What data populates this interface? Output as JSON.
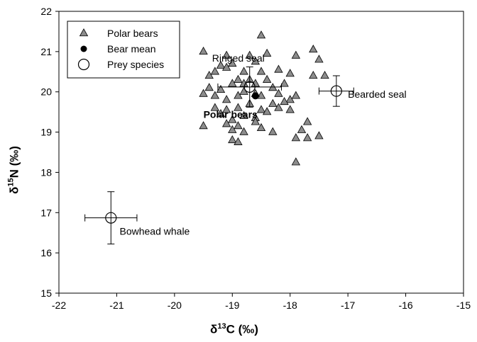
{
  "chart_data": {
    "type": "scatter",
    "xlim": [
      -22,
      -15
    ],
    "ylim": [
      15,
      22
    ],
    "xticks": [
      "-22",
      "-21",
      "-20",
      "-19",
      "-18",
      "-17",
      "-16",
      "-15"
    ],
    "yticks": [
      "15",
      "16",
      "17",
      "18",
      "19",
      "20",
      "21",
      "22"
    ],
    "xlabel": {
      "delta": "δ",
      "sup": "13",
      "element": "C",
      "unit": " (‰)"
    },
    "ylabel": {
      "delta": "δ",
      "sup": "15",
      "element": "N",
      "unit": " (‰)"
    },
    "legend": {
      "placement": "top-left",
      "entries": [
        {
          "label": "Polar bears",
          "marker": "triangle"
        },
        {
          "label": "Bear mean",
          "marker": "filled-circle"
        },
        {
          "label": "Prey species",
          "marker": "open-circle"
        }
      ]
    },
    "series": [
      {
        "name": "Polar bears",
        "marker": "triangle",
        "points": [
          [
            -19.5,
            21.0
          ],
          [
            -19.1,
            20.9
          ],
          [
            -18.5,
            21.4
          ],
          [
            -17.6,
            21.05
          ],
          [
            -17.5,
            20.8
          ],
          [
            -19.4,
            20.4
          ],
          [
            -19.3,
            20.5
          ],
          [
            -19.2,
            20.65
          ],
          [
            -19.1,
            20.6
          ],
          [
            -19.0,
            20.7
          ],
          [
            -18.9,
            20.3
          ],
          [
            -18.8,
            20.5
          ],
          [
            -18.7,
            20.9
          ],
          [
            -18.6,
            20.75
          ],
          [
            -18.5,
            20.5
          ],
          [
            -18.4,
            20.95
          ],
          [
            -18.2,
            20.55
          ],
          [
            -18.0,
            20.45
          ],
          [
            -17.9,
            20.9
          ],
          [
            -17.6,
            20.4
          ],
          [
            -19.5,
            19.95
          ],
          [
            -19.4,
            20.1
          ],
          [
            -19.3,
            19.9
          ],
          [
            -19.2,
            20.05
          ],
          [
            -19.1,
            19.8
          ],
          [
            -19.0,
            20.2
          ],
          [
            -18.9,
            19.9
          ],
          [
            -18.8,
            20.0
          ],
          [
            -18.7,
            20.3
          ],
          [
            -18.6,
            20.2
          ],
          [
            -18.5,
            19.9
          ],
          [
            -18.4,
            20.3
          ],
          [
            -18.3,
            20.1
          ],
          [
            -18.2,
            19.95
          ],
          [
            -18.1,
            20.2
          ],
          [
            -18.0,
            19.8
          ],
          [
            -17.9,
            19.9
          ],
          [
            -17.4,
            20.4
          ],
          [
            -19.3,
            19.6
          ],
          [
            -19.2,
            19.45
          ],
          [
            -19.1,
            19.55
          ],
          [
            -19.0,
            19.3
          ],
          [
            -18.9,
            19.6
          ],
          [
            -18.8,
            19.4
          ],
          [
            -18.7,
            19.7
          ],
          [
            -18.6,
            19.35
          ],
          [
            -18.5,
            19.55
          ],
          [
            -18.4,
            19.5
          ],
          [
            -18.3,
            19.7
          ],
          [
            -18.2,
            19.6
          ],
          [
            -18.1,
            19.75
          ],
          [
            -18.0,
            19.55
          ],
          [
            -19.5,
            19.15
          ],
          [
            -19.1,
            19.2
          ],
          [
            -19.0,
            19.05
          ],
          [
            -18.9,
            19.15
          ],
          [
            -18.8,
            19.0
          ],
          [
            -18.6,
            19.25
          ],
          [
            -18.5,
            19.1
          ],
          [
            -18.3,
            19.0
          ],
          [
            -17.8,
            19.05
          ],
          [
            -17.7,
            19.25
          ],
          [
            -17.9,
            18.85
          ],
          [
            -17.7,
            18.85
          ],
          [
            -17.5,
            18.9
          ],
          [
            -19.0,
            18.8
          ],
          [
            -18.9,
            18.75
          ],
          [
            -17.9,
            18.25
          ],
          [
            -18.6,
            19.95
          ],
          [
            -18.8,
            20.2
          ]
        ]
      },
      {
        "name": "Bear mean",
        "marker": "filled-circle",
        "points": [
          [
            -18.6,
            19.9
          ]
        ]
      },
      {
        "name": "Prey species",
        "marker": "open-circle",
        "points": [
          {
            "label": "Ringed seal",
            "x": -18.7,
            "y": 20.12,
            "xerr": 0.55,
            "yerr": 0.5
          },
          {
            "label": "Bearded seal",
            "x": -17.2,
            "y": 20.02,
            "xerr": 0.3,
            "yerr": 0.38
          },
          {
            "label": "Bowhead whale",
            "x": -21.1,
            "y": 16.87,
            "xerr": 0.45,
            "yerr": 0.65
          }
        ]
      }
    ],
    "annotations": [
      {
        "text": "Ringed seal",
        "x": -19.35,
        "y": 20.75,
        "bold": false
      },
      {
        "text": "Bearded seal",
        "x": -17.0,
        "y": 19.85,
        "bold": false
      },
      {
        "text": "Polar bears",
        "x": -19.5,
        "y": 19.35,
        "bold": true
      },
      {
        "text": "Bowhead whale",
        "x": -20.95,
        "y": 16.45,
        "bold": false
      }
    ]
  }
}
